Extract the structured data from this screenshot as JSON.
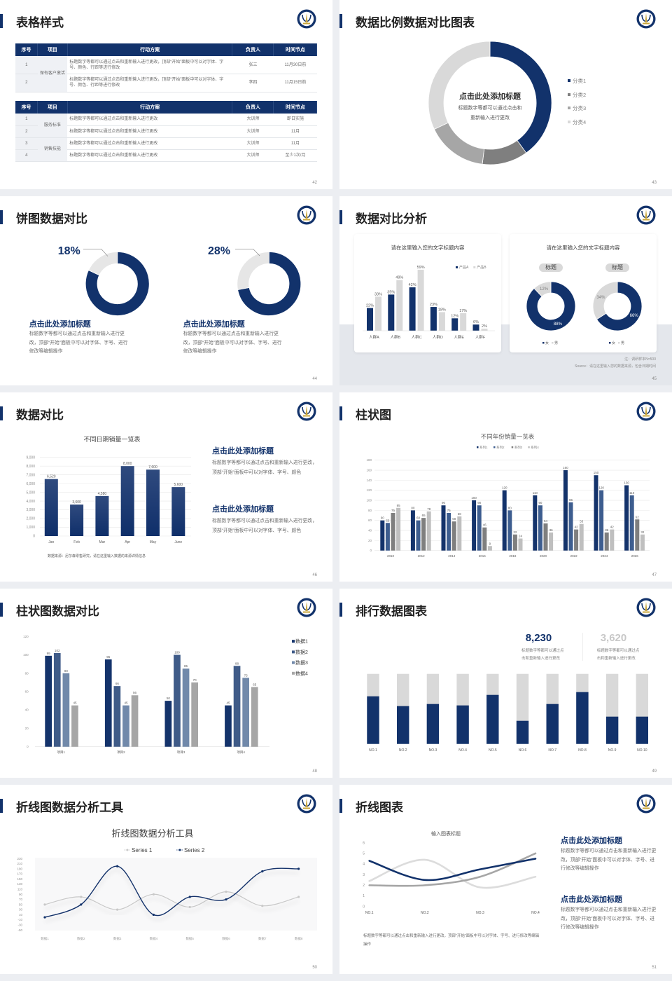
{
  "theme": {
    "navy": "#12326b",
    "title_text": "#222222",
    "body_text": "#6b6b6b",
    "light_gray": "#d9d9d9",
    "mid_gray": "#a6a6a6",
    "band_gray": "#e4e7ec"
  },
  "slides": [
    {
      "page": "42",
      "title": "表格样式",
      "tables": [
        {
          "headers": [
            "序号",
            "项目",
            "行动方案",
            "负责人",
            "时间节点"
          ],
          "groups": [
            {
              "item": "保有客户激活",
              "rows": [
                {
                  "no": "1",
                  "plan": "标题数字等都可以通过点击和重新输入进行更改，顶部“开始”面板中可以对字体、字号、颜色、行距等进行修改",
                  "owner": "张三",
                  "time": "11月30日前"
                },
                {
                  "no": "2",
                  "plan": "标题数字等都可以通过点击和重新输入进行更改，顶部“开始”面板中可以对字体、字号、颜色、行距等进行修改",
                  "owner": "李四",
                  "time": "11月15日前"
                }
              ]
            }
          ]
        },
        {
          "headers": [
            "序号",
            "项目",
            "行动方案",
            "负责人",
            "时间节点"
          ],
          "groups": [
            {
              "item": "服务标准",
              "rows": [
                {
                  "no": "1",
                  "plan": "标题数字等都可以通过点击和重新输入进行更改",
                  "owner": "大训师",
                  "time": "即日实施"
                },
                {
                  "no": "2",
                  "plan": "标题数字等都可以通过点击和重新输入进行更改",
                  "owner": "大训师",
                  "time": "11月"
                }
              ]
            },
            {
              "item": "销售技能",
              "rows": [
                {
                  "no": "3",
                  "plan": "标题数字等都可以通过点击和重新输入进行更改",
                  "owner": "大训师",
                  "time": "11月"
                },
                {
                  "no": "4",
                  "plan": "标题数字等都可以通过点击和重新输入进行更改",
                  "owner": "大训师",
                  "time": "至少1次/月"
                }
              ]
            }
          ]
        }
      ]
    },
    {
      "page": "43",
      "title": "数据比例数据对比图表",
      "center_title": "点击此处添加标题",
      "center_text": [
        "标题数字等都可以通过点击和",
        "重新输入进行更改"
      ]
    },
    {
      "page": "44",
      "title": "饼图数据对比",
      "blocks": [
        {
          "heading": "点击此处添加标题",
          "body": "标题数字等都可以通过点击和重新输入进行更改，顶部“开始”面板中可以对字体、字号、进行修改等编辑操作"
        },
        {
          "heading": "点击此处添加标题",
          "body": "标题数字等都可以通过点击和重新输入进行更改，顶部“开始”面板中可以对字体、字号、进行修改等编辑操作"
        }
      ]
    },
    {
      "page": "45",
      "title": "数据对比分析",
      "note": "注：调研样本N=500",
      "source": "Source：请在这里输入您的数据来源，包含日期时间"
    },
    {
      "page": "46",
      "title": "数据对比",
      "source": "数据来源：尼尔森零售研究，请在这里输入数据的来源详情信息",
      "blocks": [
        {
          "heading": "点击此处添加标题",
          "body": "标题数字等都可以通过点击和重新输入进行更改，顶部“开始”面板中可以对字体、字号、颜色"
        },
        {
          "heading": "点击此处添加标题",
          "body": "标题数字等都可以通过点击和重新输入进行更改，顶部“开始”面板中可以对字体、字号、颜色"
        }
      ]
    },
    {
      "page": "47",
      "title": "柱状图"
    },
    {
      "page": "48",
      "title": "柱状图数据对比"
    },
    {
      "page": "49",
      "title": "排行数据图表",
      "stats": [
        {
          "value": "8,230",
          "desc": [
            "标题数字等都可以通过点",
            "击和重新输入进行更改"
          ]
        },
        {
          "value": "3,620",
          "desc": [
            "标题数字等都可以通过点",
            "击和重新输入进行更改"
          ]
        }
      ]
    },
    {
      "page": "50",
      "title": "折线图数据分析工具"
    },
    {
      "page": "51",
      "title": "折线图表",
      "caption": "标题数字等都可以通过点击和重新输入进行更改，顶部“开始”面板中可以对字体、字号、进行修改等编辑操作",
      "blocks": [
        {
          "heading": "点击此处添加标题",
          "body": "标题数字等都可以通过点击和重新输入进行更改，顶部“开始”面板中可以对字体、字号、进行修改等编辑操作"
        },
        {
          "heading": "点击此处添加标题",
          "body": "标题数字等都可以通过点击和重新输入进行更改，顶部“开始”面板中可以对字体、字号、进行修改等编辑操作"
        }
      ]
    }
  ],
  "chart_data": [
    {
      "type": "pie",
      "categories": [
        "分类1",
        "分类2",
        "分类3",
        "分类4"
      ],
      "values": [
        40,
        12,
        16,
        32
      ],
      "colors": [
        "#12326b",
        "#7f7f7f",
        "#a6a6a6",
        "#d9d9d9"
      ],
      "legend": "right"
    },
    {
      "type": "pie",
      "label": "18%",
      "values": [
        82,
        18
      ],
      "colors": [
        "#12326b",
        "#e6e6e6"
      ]
    },
    {
      "type": "pie",
      "label": "28%",
      "values": [
        72,
        28
      ],
      "colors": [
        "#12326b",
        "#e6e6e6"
      ]
    },
    {
      "type": "bar",
      "title": "请在这里输入您的文字标题内容",
      "categories": [
        "人群A",
        "人群B",
        "人群C",
        "人群D",
        "人群E",
        "人群F"
      ],
      "series": [
        {
          "name": "产品A",
          "values": [
            22,
            35,
            42,
            23,
            12,
            6
          ]
        },
        {
          "name": "产品B",
          "values": [
            33,
            49,
            59,
            18,
            17,
            2
          ]
        }
      ],
      "unit": "%",
      "colors": [
        "#12326b",
        "#d9d9d9"
      ],
      "legend": "top-right"
    },
    {
      "type": "pie",
      "title": "标题",
      "categories": [
        "女",
        "男"
      ],
      "values": [
        88,
        12
      ],
      "unit": "%",
      "colors": [
        "#12326b",
        "#d9d9d9"
      ],
      "legend": "bottom"
    },
    {
      "type": "pie",
      "title": "标题",
      "categories": [
        "女",
        "男"
      ],
      "values": [
        66,
        34
      ],
      "unit": "%",
      "colors": [
        "#12326b",
        "#d9d9d9"
      ],
      "legend": "bottom"
    },
    {
      "type": "bar",
      "title": "不同日期销量一览表",
      "categories": [
        "Jan",
        "Feb",
        "Mar",
        "Apr",
        "May",
        "June"
      ],
      "series": [
        {
          "values": [
            6520,
            3600,
            4580,
            8000,
            7600,
            5600
          ]
        }
      ],
      "ylim": [
        0,
        9000
      ],
      "yticks": [
        0,
        1000,
        2000,
        3000,
        4000,
        5000,
        6000,
        7000,
        8000,
        9000
      ],
      "grid": true,
      "colors": [
        "#12326b"
      ]
    },
    {
      "type": "bar",
      "title": "不同年份销量一览表",
      "categories": [
        "2010",
        "2012",
        "2014",
        "2016",
        "2018",
        "2020",
        "2022",
        "2024",
        "2026"
      ],
      "series": [
        {
          "name": "系列1",
          "values": [
            60,
            80,
            90,
            100,
            120,
            110,
            160,
            150,
            130
          ]
        },
        {
          "name": "系列2",
          "values": [
            55,
            60,
            75,
            90,
            80,
            90,
            96,
            120,
            110
          ]
        },
        {
          "name": "系列3",
          "values": [
            75,
            65,
            58,
            46,
            32,
            54,
            42,
            36,
            62
          ]
        },
        {
          "name": "系列4",
          "values": [
            85,
            78,
            68,
            9,
            24,
            36,
            53,
            42,
            32
          ]
        }
      ],
      "ylim": [
        0,
        180
      ],
      "yticks": [
        0,
        20,
        40,
        60,
        80,
        100,
        120,
        140,
        160,
        180
      ],
      "grid": true,
      "colors": [
        "#14336b",
        "#3d5d8f",
        "#7f7f7f",
        "#bfbfbf"
      ],
      "legend": "top"
    },
    {
      "type": "bar",
      "categories": [
        "项目1",
        "项目2",
        "项目3",
        "项目4"
      ],
      "series": [
        {
          "name": "数据1",
          "values": [
            99,
            95,
            50,
            45
          ]
        },
        {
          "name": "数据2",
          "values": [
            102,
            66,
            100,
            88
          ]
        },
        {
          "name": "数据3",
          "values": [
            80,
            45,
            85,
            75
          ]
        },
        {
          "name": "数据4",
          "values": [
            45,
            56,
            70,
            65
          ]
        }
      ],
      "ylim": [
        0,
        120
      ],
      "yticks": [
        0,
        20,
        40,
        60,
        80,
        100,
        120
      ],
      "grid": false,
      "colors": [
        "#14336b",
        "#3f5b88",
        "#7189aa",
        "#a6a6a6"
      ],
      "legend": "right"
    },
    {
      "type": "bar",
      "stacked": true,
      "categories": [
        "NO.1",
        "NO.2",
        "NO.3",
        "NO.4",
        "NO.5",
        "NO.6",
        "NO.7",
        "NO.8",
        "NO.9",
        "NO.10"
      ],
      "values_percent": [
        68,
        54,
        57,
        55,
        70,
        33,
        57,
        74,
        39,
        39
      ],
      "colors": [
        "#12326b",
        "#d9d9d9"
      ]
    },
    {
      "type": "line",
      "title": "折线图数据分析工具",
      "categories": [
        "数据1",
        "数据2",
        "数据3",
        "数据4",
        "数据5",
        "数据6",
        "数据7",
        "数据8"
      ],
      "series": [
        {
          "name": "Series 1",
          "values": [
            50,
            80,
            30,
            90,
            40,
            100,
            45,
            80
          ]
        },
        {
          "name": "Series 2",
          "values": [
            0,
            50,
            200,
            10,
            80,
            70,
            180,
            190
          ]
        }
      ],
      "ylim": [
        -50,
        230
      ],
      "yticks": [
        -50,
        -30,
        -10,
        10,
        30,
        50,
        70,
        90,
        110,
        130,
        150,
        170,
        190,
        210,
        230
      ],
      "smooth": true,
      "colors": [
        "#c8c8c8",
        "#12326b"
      ],
      "legend": "top"
    },
    {
      "type": "line",
      "title": "输入图表标题",
      "categories": [
        "NO.1",
        "NO.2",
        "NO.3",
        "NO.4"
      ],
      "series": [
        {
          "values": [
            4.3,
            2.5,
            3.5,
            4.5
          ]
        },
        {
          "values": [
            2.4,
            4.4,
            1.8,
            2.8
          ]
        },
        {
          "values": [
            2.0,
            2.0,
            2.8,
            5.0
          ]
        }
      ],
      "ylim": [
        0,
        6
      ],
      "yticks": [
        0,
        1,
        2,
        3,
        4,
        5,
        6
      ],
      "smooth": true,
      "colors": [
        "#12326b",
        "#dcdcdc",
        "#a6a6a6"
      ]
    }
  ]
}
